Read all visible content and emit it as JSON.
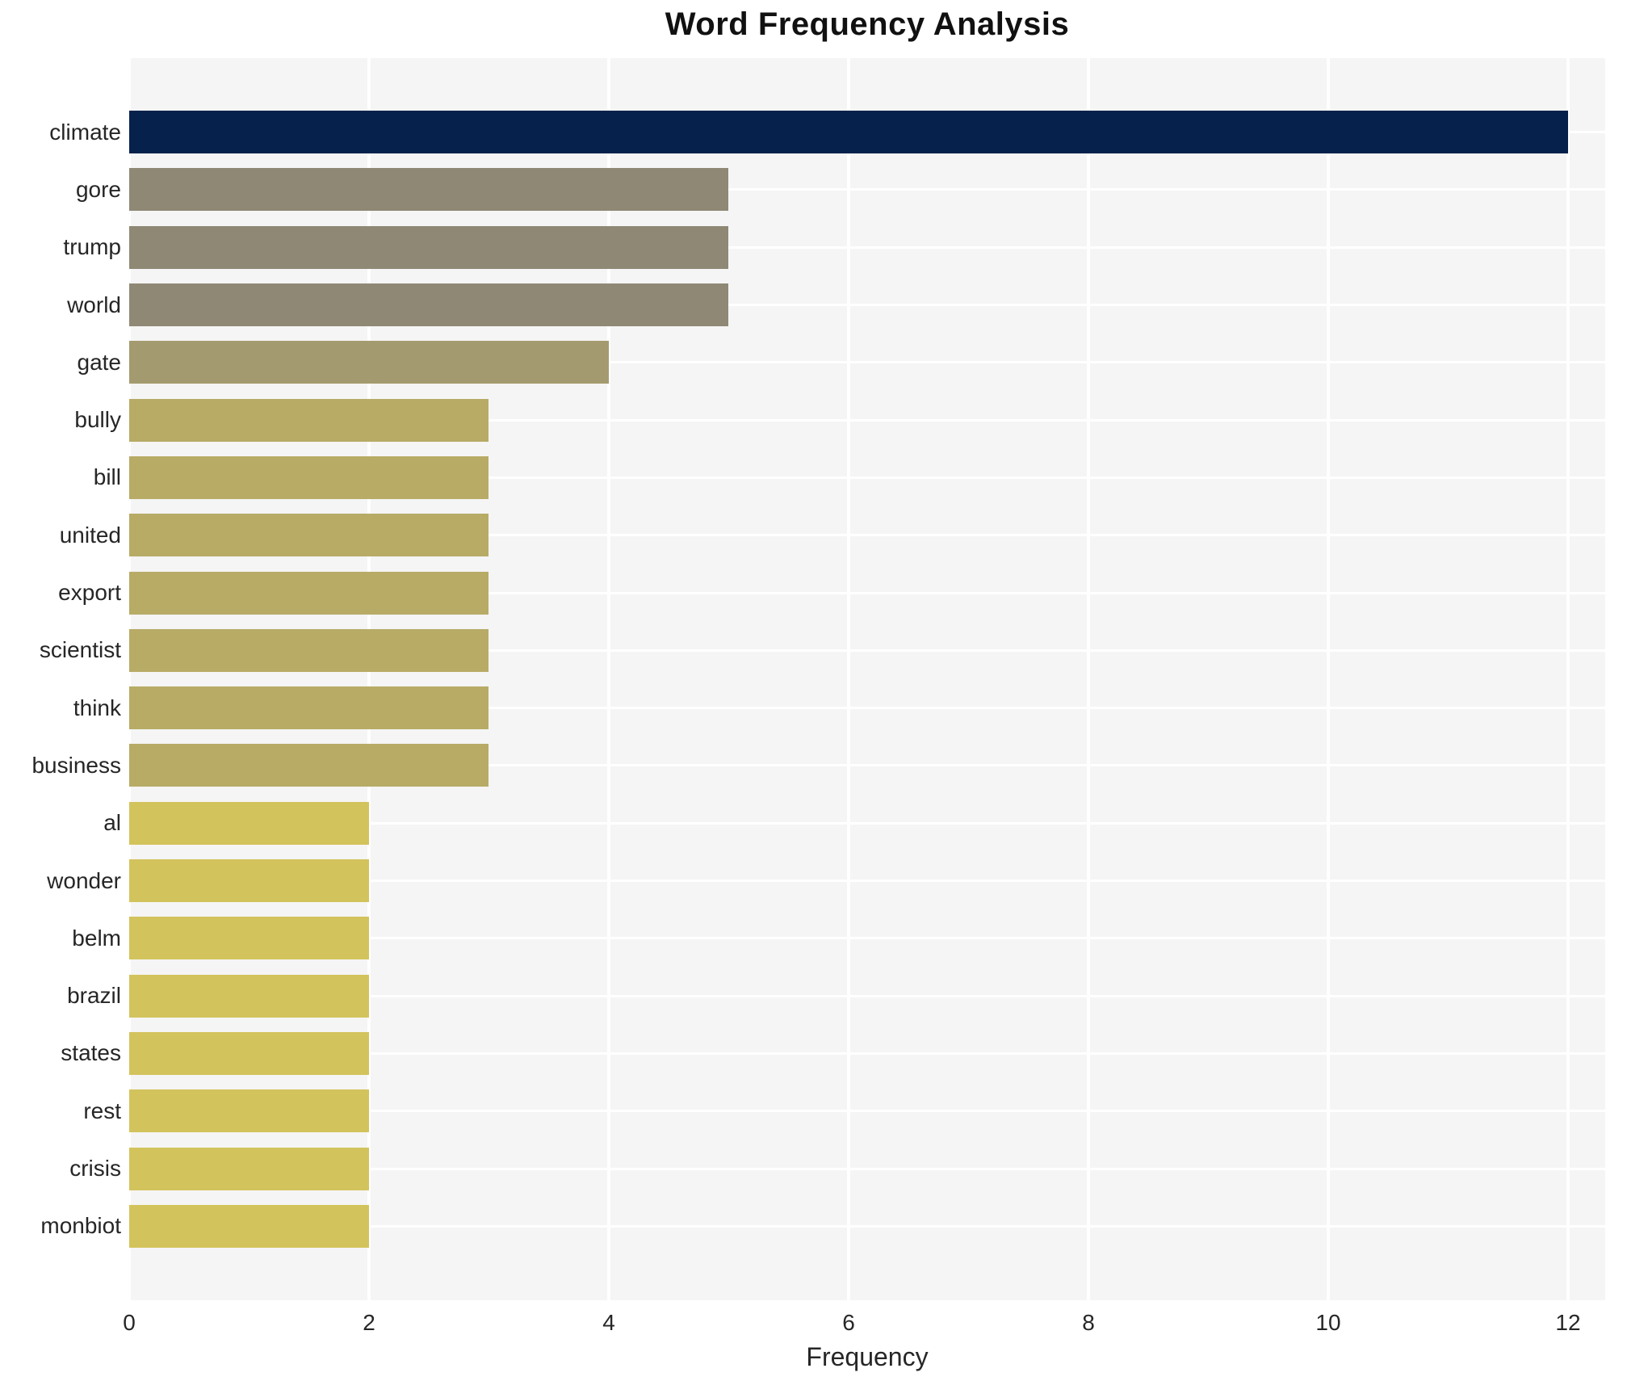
{
  "chart_data": {
    "type": "bar",
    "orientation": "horizontal",
    "title": "Word Frequency Analysis",
    "xlabel": "Frequency",
    "ylabel": "",
    "categories": [
      "climate",
      "gore",
      "trump",
      "world",
      "gate",
      "bully",
      "bill",
      "united",
      "export",
      "scientist",
      "think",
      "business",
      "al",
      "wonder",
      "belm",
      "brazil",
      "states",
      "rest",
      "crisis",
      "monbiot"
    ],
    "values": [
      12,
      5,
      5,
      5,
      4,
      3,
      3,
      3,
      3,
      3,
      3,
      3,
      2,
      2,
      2,
      2,
      2,
      2,
      2,
      2
    ],
    "bar_colors": [
      "#05214c",
      "#8e8875",
      "#8e8875",
      "#8e8875",
      "#a49a6f",
      "#b7ab66",
      "#b7ab66",
      "#b7ab66",
      "#b7ab66",
      "#b7ab66",
      "#b7ab66",
      "#b7ab66",
      "#d3c35c",
      "#d3c35c",
      "#d3c35c",
      "#d3c35c",
      "#d3c35c",
      "#d3c35c",
      "#d3c35c",
      "#d3c35c"
    ],
    "xlim": [
      0,
      12.31
    ],
    "xticks": [
      0,
      2,
      4,
      6,
      8,
      10,
      12
    ],
    "grid": true,
    "legend": "none",
    "plot_background": "#f5f5f5",
    "grid_color": "#ffffff",
    "text_color": "#262626",
    "title_color": "#111111"
  }
}
